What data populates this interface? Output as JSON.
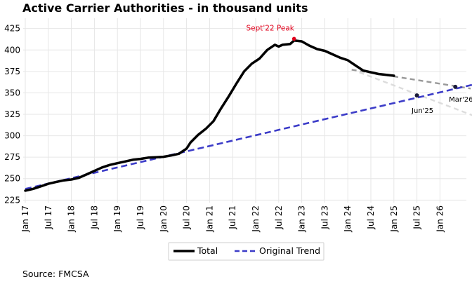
{
  "chart_data": {
    "type": "line",
    "title": "Active Carrier Authorities - in thousand units",
    "ylim": [
      222,
      437
    ],
    "yticks": [
      225,
      250,
      275,
      300,
      325,
      350,
      375,
      400,
      425
    ],
    "xticks": [
      "Jan 17",
      "Jul 17",
      "Jan 18",
      "Jul 18",
      "Jan 19",
      "Jul 19",
      "Jan 20",
      "Jul 20",
      "Jan 21",
      "Jul 21",
      "Jan 22",
      "Jul 22",
      "Jan 23",
      "Jul 23",
      "Jan 24",
      "Jul 24",
      "Jan 25",
      "Jul 25",
      "Jan 26"
    ],
    "grid": true,
    "legend": {
      "placement": "bottom-center",
      "entries": [
        {
          "label": "Total",
          "color": "#000000",
          "style": "solid"
        },
        {
          "label": "Original Trend",
          "color": "#3c3cc8",
          "style": "dashed"
        }
      ]
    },
    "series": [
      {
        "name": "Total",
        "color": "#000000",
        "style": "solid",
        "points": [
          [
            "2017-01",
            236
          ],
          [
            "2017-03",
            238
          ],
          [
            "2017-05",
            241
          ],
          [
            "2017-07",
            244
          ],
          [
            "2017-09",
            246
          ],
          [
            "2017-11",
            248
          ],
          [
            "2018-01",
            249
          ],
          [
            "2018-03",
            251
          ],
          [
            "2018-05",
            255
          ],
          [
            "2018-07",
            259
          ],
          [
            "2018-09",
            263
          ],
          [
            "2018-11",
            266
          ],
          [
            "2019-01",
            268
          ],
          [
            "2019-03",
            270
          ],
          [
            "2019-05",
            272
          ],
          [
            "2019-07",
            273
          ],
          [
            "2019-09",
            274.5
          ],
          [
            "2019-11",
            275
          ],
          [
            "2020-01",
            275.5
          ],
          [
            "2020-03",
            277
          ],
          [
            "2020-05",
            279
          ],
          [
            "2020-07",
            285
          ],
          [
            "2020-08",
            292
          ],
          [
            "2020-10",
            301
          ],
          [
            "2020-12",
            308
          ],
          [
            "2021-02",
            317
          ],
          [
            "2021-04",
            332
          ],
          [
            "2021-06",
            346
          ],
          [
            "2021-08",
            361
          ],
          [
            "2021-10",
            375
          ],
          [
            "2021-12",
            384
          ],
          [
            "2022-02",
            390
          ],
          [
            "2022-04",
            400
          ],
          [
            "2022-06",
            406
          ],
          [
            "2022-07",
            404
          ],
          [
            "2022-08",
            406
          ],
          [
            "2022-10",
            407
          ],
          [
            "2022-11",
            411
          ],
          [
            "2023-01",
            410
          ],
          [
            "2023-03",
            405
          ],
          [
            "2023-05",
            401
          ],
          [
            "2023-07",
            399
          ],
          [
            "2023-09",
            395
          ],
          [
            "2023-11",
            391
          ],
          [
            "2024-01",
            388
          ],
          [
            "2024-03",
            382
          ],
          [
            "2024-05",
            376
          ],
          [
            "2024-07",
            374
          ],
          [
            "2024-09",
            372
          ],
          [
            "2024-11",
            371
          ],
          [
            "2025-01",
            370
          ]
        ]
      },
      {
        "name": "Original Trend",
        "color": "#3c3cc8",
        "style": "dashed",
        "points": [
          [
            "2017-01",
            238
          ],
          [
            "2026-10",
            360
          ]
        ]
      },
      {
        "name": "",
        "color": "#999999",
        "style": "dashed",
        "points": [
          [
            "2024-02",
            377
          ],
          [
            "2026-09",
            355
          ]
        ]
      },
      {
        "name": "",
        "color": "#dcdcdc",
        "style": "dashed",
        "points": [
          [
            "2024-04",
            374
          ],
          [
            "2026-10",
            323
          ]
        ]
      }
    ],
    "markers": [
      {
        "x": "2022-11",
        "y": 413,
        "color": "#e0001b",
        "label": "Sept'22 Peak"
      },
      {
        "x": "2025-07",
        "y": 347,
        "color": "#1a1a3a",
        "label": "Jun'25"
      },
      {
        "x": "2026-05",
        "y": 357,
        "color": "#1a1a3a",
        "label": "Mar'26"
      }
    ],
    "source": "Source: FMCSA"
  }
}
